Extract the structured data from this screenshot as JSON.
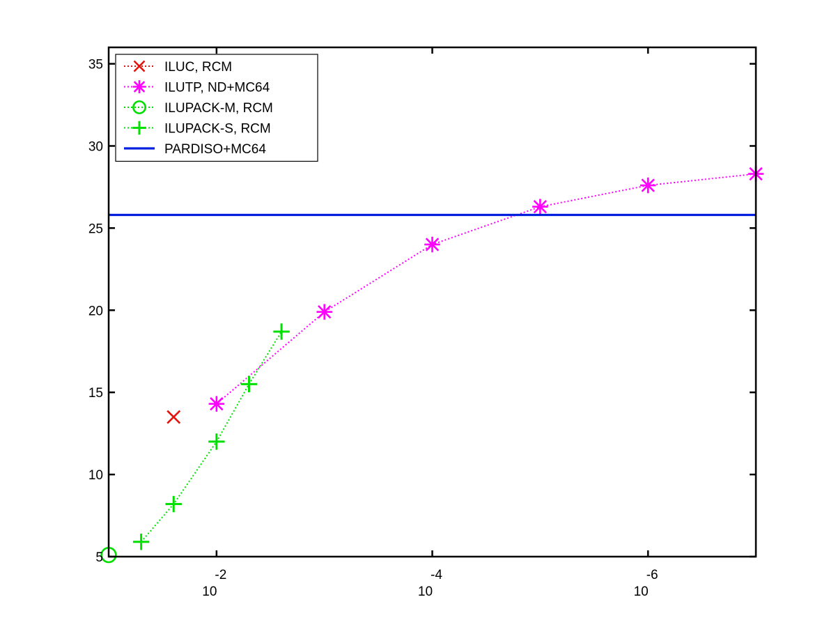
{
  "chart_data": {
    "type": "line",
    "x_scale": "log-reversed",
    "xlim": [
      0.1,
      1e-07
    ],
    "ylim": [
      5,
      36
    ],
    "x_ticks": [
      {
        "value": 0.01,
        "base": "10",
        "exp": "-2"
      },
      {
        "value": 0.0001,
        "base": "10",
        "exp": "-4"
      },
      {
        "value": 1e-06,
        "base": "10",
        "exp": "-6"
      }
    ],
    "y_ticks": [
      5,
      10,
      15,
      20,
      25,
      30,
      35
    ],
    "grid": false,
    "legend_position": "top-left",
    "series": [
      {
        "name": "ILUC, RCM",
        "color": "#e3120b",
        "marker": "x",
        "line": "dotted",
        "x": [
          0.025
        ],
        "y": [
          13.5
        ]
      },
      {
        "name": "ILUTP,  ND+MC64",
        "color": "#ff00ff",
        "marker": "asterisk",
        "line": "dotted",
        "x": [
          0.01,
          0.001,
          0.0001,
          1e-05,
          1e-06,
          1e-07
        ],
        "y": [
          14.3,
          19.9,
          24.0,
          26.3,
          27.6,
          28.3
        ]
      },
      {
        "name": "ILUPACK-M, RCM",
        "color": "#00e000",
        "marker": "circle",
        "line": "dotted",
        "x": [
          0.1
        ],
        "y": [
          5.1
        ]
      },
      {
        "name": "ILUPACK-S, RCM",
        "color": "#00e000",
        "marker": "plus",
        "line": "dotted",
        "x": [
          0.05,
          0.025,
          0.01,
          0.005,
          0.0025
        ],
        "y": [
          5.9,
          8.2,
          12.0,
          15.5,
          18.7
        ]
      },
      {
        "name": "PARDISO+MC64",
        "color": "#0020e0",
        "marker": "none",
        "line": "solid",
        "x": [
          0.1,
          1e-07
        ],
        "y": [
          25.8,
          25.8
        ]
      }
    ]
  }
}
